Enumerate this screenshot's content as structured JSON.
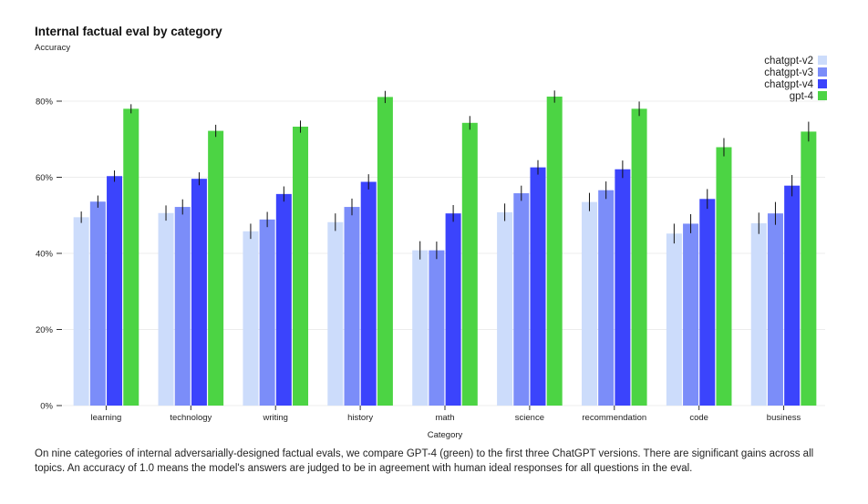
{
  "chart_data": {
    "type": "bar",
    "title": "Internal factual eval by category",
    "ylabel": "Accuracy",
    "xlabel": "Category",
    "ylim": [
      0,
      100
    ],
    "yticks": [
      0,
      20,
      40,
      60,
      80
    ],
    "ytick_labels": [
      "0%",
      "20%",
      "40%",
      "60%",
      "80%"
    ],
    "categories": [
      "learning",
      "technology",
      "writing",
      "history",
      "math",
      "science",
      "recommendation",
      "code",
      "business"
    ],
    "series": [
      {
        "name": "chatgpt-v2",
        "color": "#ccdcfb",
        "values": [
          49.5,
          50.6,
          45.8,
          48.2,
          40.8,
          50.8,
          53.5,
          45.2,
          47.9
        ],
        "errors": [
          1.5,
          2.0,
          2.0,
          2.3,
          2.4,
          2.3,
          2.4,
          2.6,
          2.8
        ]
      },
      {
        "name": "chatgpt-v3",
        "color": "#7b8df9",
        "values": [
          53.6,
          52.2,
          48.9,
          52.2,
          40.8,
          55.8,
          56.6,
          47.8,
          50.5
        ],
        "errors": [
          1.6,
          2.0,
          2.0,
          2.2,
          2.3,
          2.0,
          2.3,
          2.5,
          3.0
        ]
      },
      {
        "name": "chatgpt-v4",
        "color": "#3b44fc",
        "values": [
          60.3,
          59.6,
          55.6,
          58.8,
          50.5,
          62.6,
          62.1,
          54.3,
          57.8
        ],
        "errors": [
          1.5,
          1.7,
          2.0,
          2.0,
          2.2,
          1.9,
          2.3,
          2.6,
          2.8
        ]
      },
      {
        "name": "gpt-4",
        "color": "#4cd444",
        "values": [
          78.0,
          72.2,
          73.3,
          81.1,
          74.3,
          81.2,
          78.0,
          67.9,
          72.0
        ],
        "errors": [
          1.2,
          1.6,
          1.6,
          1.6,
          1.8,
          1.6,
          1.9,
          2.4,
          2.6
        ]
      }
    ],
    "legend_position": "top-right",
    "grid": true
  },
  "caption": "On nine categories of internal adversarially-designed factual evals, we compare GPT-4 (green) to the first three ChatGPT versions. There are significant gains across all topics. An accuracy of 1.0 means the model's answers are judged to be in agreement with human ideal responses for all questions in the eval."
}
